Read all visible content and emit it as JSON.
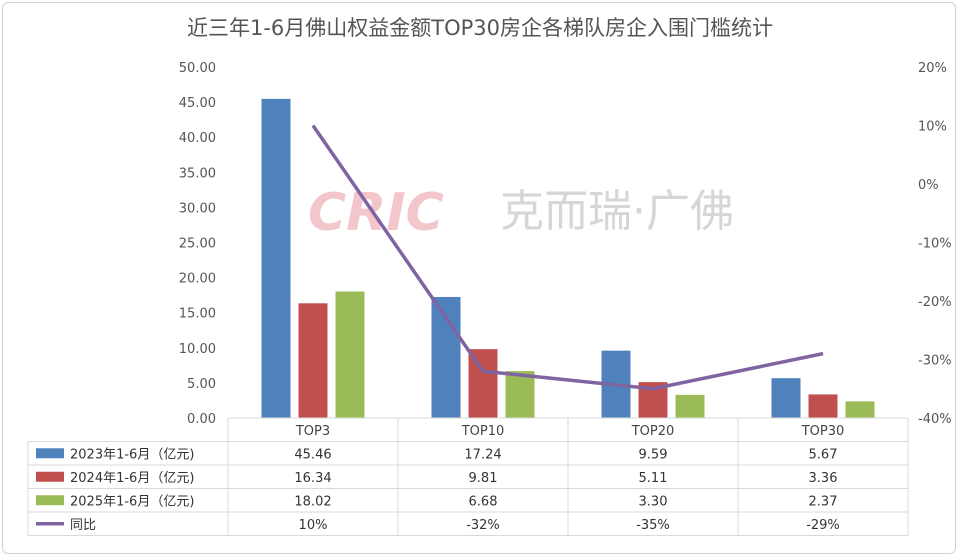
{
  "title": "近三年1-6月佛山权益金额TOP30房企各梯队房企入围门槛统计",
  "watermark": {
    "logo": "CRIC",
    "text": "克而瑞·广佛"
  },
  "chart_data": {
    "type": "bar",
    "categories": [
      "TOP3",
      "TOP10",
      "TOP20",
      "TOP30"
    ],
    "series": [
      {
        "name": "2023年1-6月（亿元)",
        "values": [
          45.46,
          17.24,
          9.59,
          5.67
        ],
        "labels": [
          "45.46",
          "17.24",
          "9.59",
          "5.67"
        ],
        "color": "#4f81bd",
        "kind": "bar"
      },
      {
        "name": "2024年1-6月（亿元)",
        "values": [
          16.34,
          9.81,
          5.11,
          3.36
        ],
        "labels": [
          "16.34",
          "9.81",
          "5.11",
          "3.36"
        ],
        "color": "#c0504d",
        "kind": "bar"
      },
      {
        "name": "2025年1-6月（亿元)",
        "values": [
          18.02,
          6.68,
          3.3,
          2.37
        ],
        "labels": [
          "18.02",
          "6.68",
          "3.30",
          "2.37"
        ],
        "color": "#9bbb59",
        "kind": "bar"
      },
      {
        "name": "同比",
        "values": [
          10,
          -32,
          -35,
          -29
        ],
        "labels": [
          "10%",
          "-32%",
          "-35%",
          "-29%"
        ],
        "color": "#8064a2",
        "kind": "line",
        "axis": "right"
      }
    ],
    "y_left": {
      "range": [
        0,
        50
      ],
      "ticks": [
        "0.00",
        "5.00",
        "10.00",
        "15.00",
        "20.00",
        "25.00",
        "30.00",
        "35.00",
        "40.00",
        "45.00",
        "50.00"
      ]
    },
    "y_right": {
      "range": [
        -40,
        20
      ],
      "ticks": [
        "20%",
        "10%",
        "0%",
        "-10%",
        "-20%",
        "-30%",
        "-40%"
      ]
    },
    "grid": false,
    "legend": "data-table"
  }
}
